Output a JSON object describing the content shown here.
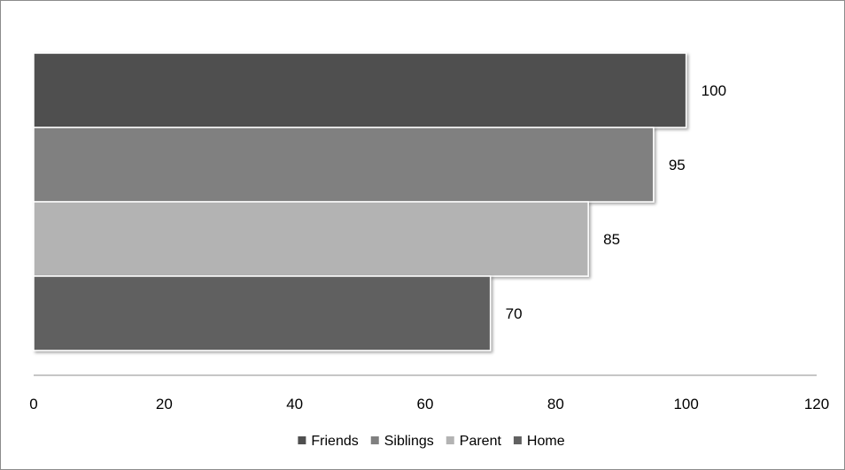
{
  "chart_data": {
    "type": "bar",
    "orientation": "horizontal",
    "stacking": "overlapped",
    "title": "",
    "xlabel": "",
    "ylabel": "",
    "xlim": [
      0,
      120
    ],
    "x_ticks": [
      0,
      20,
      40,
      60,
      80,
      100,
      120
    ],
    "grid": false,
    "legend": {
      "position": "bottom"
    },
    "series": [
      {
        "name": "Friends",
        "value": 100,
        "color": "#4f4f4f"
      },
      {
        "name": "Siblings",
        "value": 95,
        "color": "#808080"
      },
      {
        "name": "Parent",
        "value": 85,
        "color": "#b3b3b3"
      },
      {
        "name": "Home",
        "value": 70,
        "color": "#616161"
      }
    ]
  }
}
